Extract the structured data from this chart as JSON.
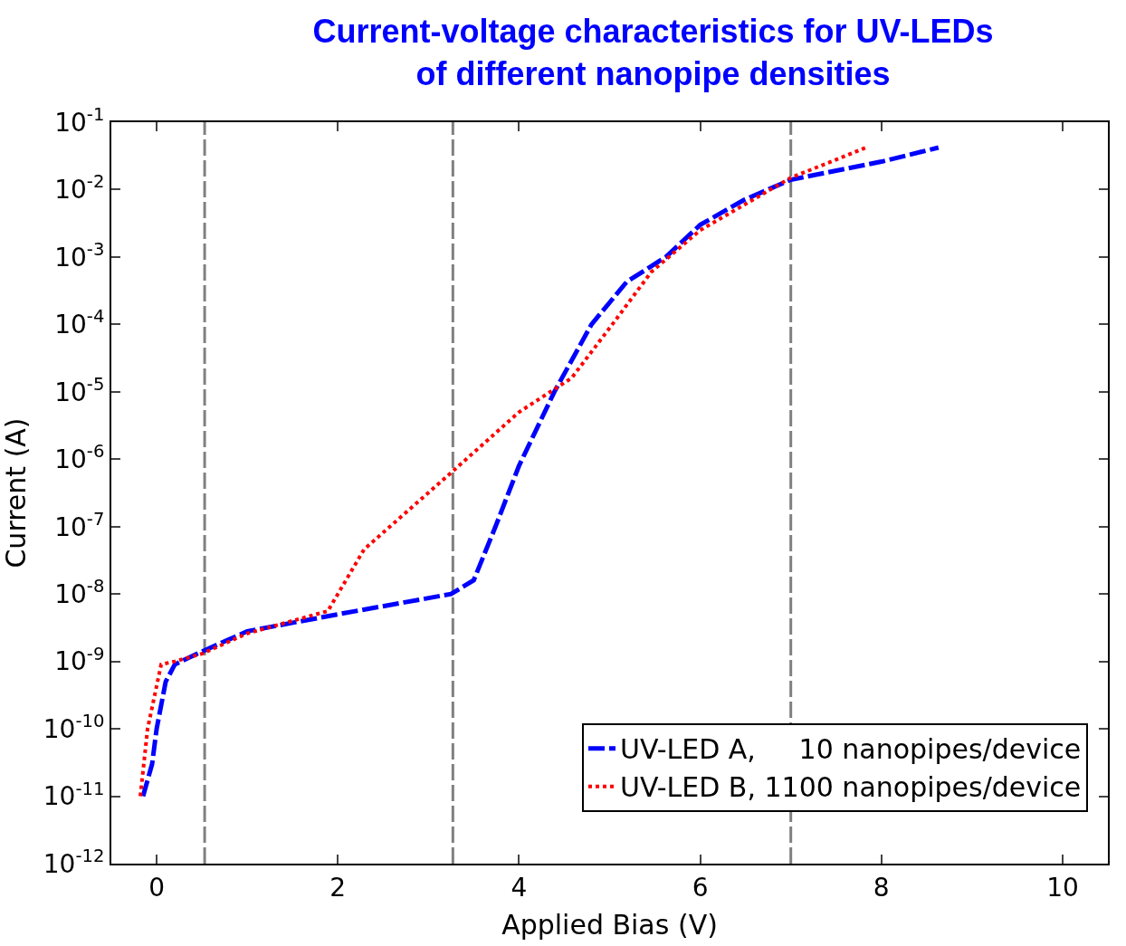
{
  "chart_data": {
    "type": "line",
    "title": "Current-voltage characteristics for UV-LEDs\nof different nanopipe densities",
    "xlabel": "Applied Bias (V)",
    "ylabel": "Current (A)",
    "log": "y",
    "xlim": [
      -0.5,
      10.5
    ],
    "ylim": [
      1e-12,
      0.1
    ],
    "xticks": [
      0,
      2,
      4,
      6,
      8,
      10
    ],
    "yticks": [
      {
        "value": 1e-12,
        "label": "10$^{-12}$"
      },
      {
        "value": 1e-11,
        "label": "10$^{-11}$"
      },
      {
        "value": 1e-10,
        "label": "10$^{-10}$"
      },
      {
        "value": 1e-09,
        "label": "10$^{-9}$"
      },
      {
        "value": 1e-08,
        "label": "10$^{-8}$"
      },
      {
        "value": 1e-07,
        "label": "10$^{-7}$"
      },
      {
        "value": 1e-06,
        "label": "10$^{-6}$"
      },
      {
        "value": 1e-05,
        "label": "10$^{-5}$"
      },
      {
        "value": 0.0001,
        "label": "10$^{-4}$"
      },
      {
        "value": 0.001,
        "label": "10$^{-3}$"
      },
      {
        "value": 0.01,
        "label": "10$^{-2}$"
      },
      {
        "value": 0.1,
        "label": "10$^{-1}$"
      }
    ],
    "grid": false,
    "legend": "bottom right",
    "marker": "none",
    "ref_lines": [
      {
        "axis": "x",
        "value": 0.53,
        "color": "#808080",
        "line_style": "dashed"
      },
      {
        "axis": "x",
        "value": 3.27,
        "color": "#808080",
        "line_style": "dashed"
      },
      {
        "axis": "x",
        "value": 7.0,
        "color": "#808080",
        "line_style": "dashed"
      }
    ],
    "series": [
      {
        "name": "UV-LED A,     10 nanopipes/device",
        "color": "#0000ff",
        "line_style": "dashed",
        "x": [
          -0.15,
          -0.05,
          0.0,
          0.1,
          0.2,
          0.5,
          1.0,
          2.0,
          3.25,
          3.5,
          3.74,
          4.0,
          4.39,
          4.8,
          5.19,
          5.62,
          6.0,
          6.48,
          7.0,
          8.0,
          8.63
        ],
        "values": [
          1e-11,
          3e-11,
          1e-10,
          5e-10,
          9e-10,
          1.4e-09,
          2.8e-09,
          5e-09,
          1e-08,
          1.6e-08,
          1e-07,
          8e-07,
          1e-05,
          0.0001,
          0.00043,
          0.001,
          0.003,
          0.007,
          0.014,
          0.026,
          0.042
        ]
      },
      {
        "name": "UV-LED B, 1100 nanopipes/device",
        "color": "#ff0000",
        "line_style": "dotted",
        "x": [
          -0.18,
          -0.1,
          0.05,
          0.2,
          0.5,
          1.0,
          1.89,
          2.29,
          3.25,
          4.0,
          4.58,
          5.03,
          5.46,
          6.0,
          7.0,
          7.83
        ],
        "values": [
          1e-11,
          1e-10,
          9e-10,
          1e-09,
          1.3e-09,
          2.6e-09,
          5.6e-09,
          4.6e-08,
          6.3e-07,
          5e-06,
          1.6e-05,
          0.0001,
          0.0006,
          0.0025,
          0.015,
          0.042
        ]
      }
    ]
  }
}
